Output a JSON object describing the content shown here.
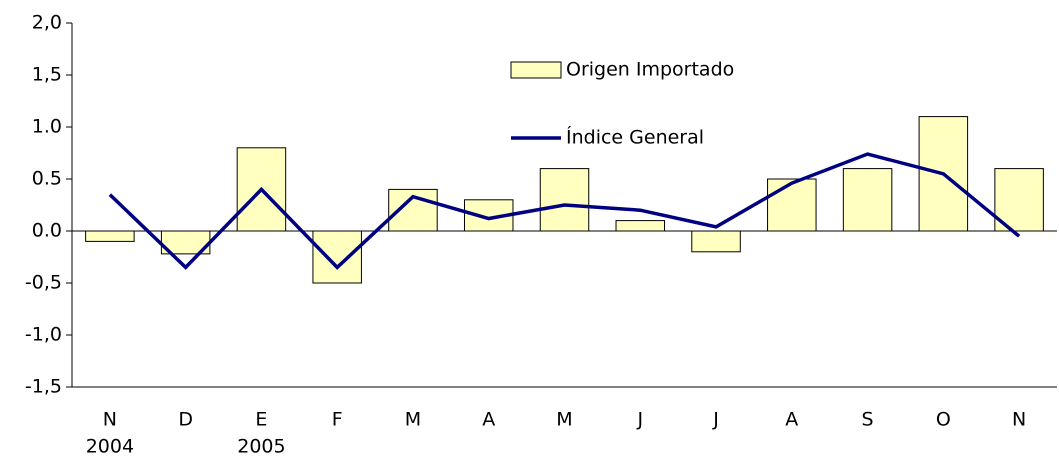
{
  "chart_data": {
    "type": "bar_line",
    "categories": [
      "N",
      "D",
      "E",
      "F",
      "M",
      "A",
      "M",
      "J",
      "J",
      "A",
      "S",
      "O",
      "N"
    ],
    "category_years": [
      "2004",
      null,
      "2005",
      null,
      null,
      null,
      null,
      null,
      null,
      null,
      null,
      null,
      null
    ],
    "series": [
      {
        "name": "Origen Importado",
        "type": "bar",
        "color": "#ffffc0",
        "values": [
          -0.1,
          -0.22,
          0.8,
          -0.5,
          0.4,
          0.3,
          0.6,
          0.1,
          -0.2,
          0.5,
          0.6,
          1.1,
          0.6
        ]
      },
      {
        "name": "Índice General",
        "type": "line",
        "color": "#000080",
        "values": [
          0.35,
          -0.35,
          0.4,
          -0.35,
          0.33,
          0.12,
          0.25,
          0.2,
          0.04,
          0.46,
          0.74,
          0.55,
          -0.05
        ]
      }
    ],
    "ylim": [
      -1.5,
      2.0
    ],
    "yticks": [
      {
        "value": -1.5,
        "label": "-1,5"
      },
      {
        "value": -1.0,
        "label": "-1,0"
      },
      {
        "value": -0.5,
        "label": "-0,5"
      },
      {
        "value": 0.0,
        "label": "0.0"
      },
      {
        "value": 0.5,
        "label": "0.5"
      },
      {
        "value": 1.0,
        "label": "1.0"
      },
      {
        "value": 1.5,
        "label": "1,5"
      },
      {
        "value": 2.0,
        "label": "2,0"
      }
    ],
    "grid": false
  }
}
